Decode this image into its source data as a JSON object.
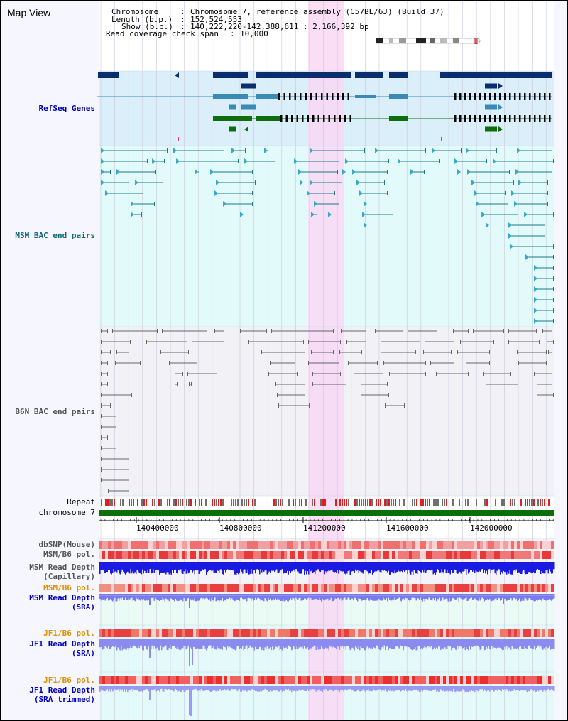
{
  "page": {
    "title": "Map View"
  },
  "info": {
    "chromosome_key": "Chromosome",
    "chromosome_value": "Chromosome 7, reference assembly (C57BL/6J) (Build 37)",
    "length_key": "Length (b.p.)",
    "length_value": "152,524,553",
    "show_key": "Show (b.p.)",
    "show_value": "140,222,220-142,388,611 : 2,166,392 bp",
    "coverage_key": "Read coverage check span",
    "coverage_value": "10,000"
  },
  "tracks": {
    "refseq": "RefSeq Genes",
    "msm_bac": "MSM BAC end pairs",
    "b6n_bac": "B6N BAC end pairs",
    "repeat": "Repeat",
    "chromosome": "chromosome 7",
    "dbsnp": "dbSNP(Mouse)",
    "msm_b6_pol": "MSM/B6 pol.",
    "msm_read_depth_cap_1": "MSM Read Depth",
    "msm_read_depth_cap_2": "(Capillary)",
    "msm_b6_pol_2": "MSM/B6 pol.",
    "msm_read_depth_sra_1": "MSM Read Depth",
    "msm_read_depth_sra_2": "(SRA)",
    "jf1_b6_pol": "JF1/B6 pol.",
    "jf1_read_depth_sra_1": "JF1 Read Depth",
    "jf1_read_depth_sra_2": "(SRA)",
    "jf1_b6_pol_2": "JF1/B6 pol.",
    "jf1_read_depth_trim_1": "JF1 Read Depth",
    "jf1_read_depth_trim_2": "(SRA trimmed)"
  },
  "axis": {
    "ticks": [
      "140400000",
      "140800000",
      "141200000",
      "141600000",
      "142000000"
    ]
  },
  "colors": {
    "refseq_bg": "#dbeffa",
    "msm_bac_bg": "#e2fafa",
    "b6n_bac_bg": "#f1f1f6",
    "gene_dark": "#0a2d6e",
    "gene_mid": "#3a8ab8",
    "gene_green": "#0e6e0e",
    "bac_line": "#1a7a8a",
    "b6n_line": "#666666",
    "highlight": "#f8d8f4",
    "depth_blue": "#1a1ae0",
    "depth_light": "#8a8af0",
    "pol_red": "#e83030",
    "chrom_green": "#0a6e0a"
  }
}
